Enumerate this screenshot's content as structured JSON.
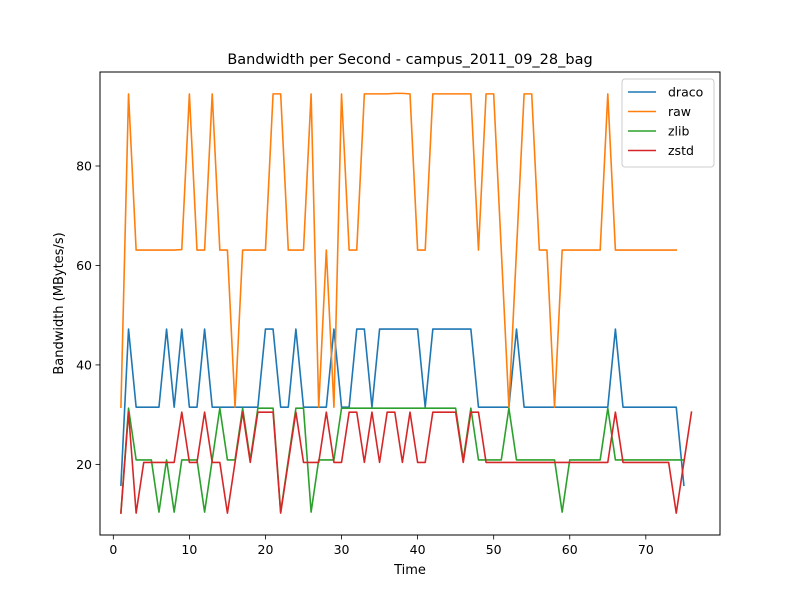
{
  "chart_data": {
    "type": "line",
    "title": "Bandwidth per Second - campus_2011_09_28_bag",
    "xlabel": "Time",
    "ylabel": "Bandwidth (MBytes/s)",
    "xlim": [
      -1.75,
      79.75
    ],
    "ylim": [
      5.8,
      98.9
    ],
    "xticks": [
      0,
      10,
      20,
      30,
      40,
      50,
      60,
      70
    ],
    "yticks": [
      20,
      40,
      60,
      80
    ],
    "legend_position": "top-right",
    "series": [
      {
        "name": "draco",
        "color": "#1f77b4",
        "x": [
          1,
          2,
          3,
          4,
          5,
          6,
          7,
          8,
          9,
          10,
          11,
          12,
          13,
          14,
          15,
          16,
          17,
          18,
          19,
          20,
          21,
          22,
          23,
          24,
          25,
          26,
          27,
          28,
          29,
          30,
          31,
          32,
          33,
          34,
          35,
          36,
          37,
          38,
          39,
          40,
          41,
          42,
          43,
          44,
          45,
          46,
          47,
          48,
          49,
          50,
          51,
          52,
          53,
          54,
          55,
          56,
          57,
          58,
          59,
          60,
          61,
          62,
          63,
          64,
          65,
          66,
          67,
          68,
          69,
          70,
          71,
          72,
          73,
          74,
          75
        ],
        "y": [
          15.8,
          47.2,
          31.5,
          31.5,
          31.5,
          31.5,
          47.2,
          31.5,
          47.2,
          31.5,
          31.5,
          47.2,
          31.5,
          31.5,
          31.5,
          31.5,
          31.5,
          31.5,
          31.5,
          47.2,
          47.2,
          31.5,
          31.5,
          47.2,
          31.5,
          31.5,
          31.5,
          31.5,
          47.2,
          31.5,
          31.5,
          47.2,
          47.2,
          31.5,
          47.2,
          47.2,
          47.2,
          47.2,
          47.2,
          47.2,
          31.5,
          47.2,
          47.2,
          47.2,
          47.2,
          47.2,
          47.2,
          31.5,
          31.5,
          31.5,
          31.5,
          31.5,
          47.2,
          31.5,
          31.5,
          31.5,
          31.5,
          31.5,
          31.5,
          31.5,
          31.5,
          31.5,
          31.5,
          31.5,
          31.5,
          47.2,
          31.5,
          31.5,
          31.5,
          31.5,
          31.5,
          31.5,
          31.5,
          31.5,
          15.8
        ]
      },
      {
        "name": "raw",
        "color": "#ff7f0e",
        "x": [
          1,
          2,
          3,
          4,
          5,
          6,
          7,
          8,
          9,
          10,
          11,
          12,
          13,
          14,
          15,
          16,
          17,
          18,
          19,
          20,
          21,
          22,
          23,
          24,
          25,
          26,
          27,
          28,
          29,
          30,
          31,
          32,
          33,
          34,
          35,
          36,
          37,
          38,
          39,
          40,
          41,
          42,
          43,
          44,
          45,
          46,
          47,
          48,
          49,
          50,
          51,
          52,
          53,
          54,
          55,
          56,
          57,
          58,
          59,
          60,
          61,
          62,
          63,
          64,
          65,
          66,
          67,
          68,
          69,
          70,
          71,
          72,
          73,
          74
        ],
        "y": [
          31.5,
          94.5,
          63.1,
          63.1,
          63.1,
          63.1,
          63.1,
          63.1,
          63.2,
          94.5,
          63.1,
          63.1,
          94.5,
          63.1,
          63.1,
          31.5,
          63.1,
          63.1,
          63.1,
          63.1,
          94.5,
          94.5,
          63.1,
          63.1,
          63.1,
          94.5,
          31.5,
          63.1,
          31.5,
          94.5,
          63.1,
          63.1,
          94.5,
          94.5,
          94.5,
          94.5,
          94.6,
          94.6,
          94.5,
          63.1,
          63.1,
          94.5,
          94.5,
          94.5,
          94.5,
          94.5,
          94.5,
          63.1,
          94.5,
          94.5,
          63.1,
          31.5,
          63.1,
          94.5,
          94.5,
          63.1,
          63.1,
          31.5,
          63.1,
          63.1,
          63.1,
          63.1,
          63.1,
          63.1,
          94.5,
          63.1,
          63.1,
          63.1,
          63.1,
          63.1,
          63.1,
          63.1,
          63.1,
          63.1
        ]
      },
      {
        "name": "zlib",
        "color": "#2ca02c",
        "x": [
          1,
          2,
          3,
          4,
          5,
          6,
          7,
          8,
          9,
          10,
          11,
          12,
          13,
          14,
          15,
          16,
          17,
          18,
          19,
          20,
          21,
          22,
          23,
          24,
          25,
          26,
          27,
          28,
          29,
          30,
          31,
          32,
          33,
          34,
          35,
          36,
          37,
          38,
          39,
          40,
          41,
          42,
          43,
          44,
          45,
          46,
          47,
          48,
          49,
          50,
          51,
          52,
          53,
          54,
          55,
          56,
          57,
          58,
          59,
          60,
          61,
          62,
          63,
          64,
          65,
          66,
          67,
          68,
          69,
          70,
          71,
          72,
          73,
          74,
          75
        ],
        "y": [
          10.4,
          31.3,
          20.9,
          20.9,
          20.9,
          10.4,
          20.9,
          10.4,
          20.9,
          20.9,
          20.9,
          10.4,
          20.9,
          31.3,
          20.9,
          20.9,
          31.3,
          20.9,
          31.3,
          31.3,
          31.3,
          10.4,
          20.9,
          31.3,
          31.3,
          10.4,
          20.9,
          20.9,
          20.9,
          31.3,
          31.3,
          31.3,
          31.3,
          31.3,
          31.3,
          31.3,
          31.3,
          31.3,
          31.3,
          31.3,
          31.3,
          31.3,
          31.3,
          31.3,
          31.3,
          20.9,
          31.3,
          20.9,
          20.9,
          20.9,
          20.9,
          31.3,
          20.9,
          20.9,
          20.9,
          20.9,
          20.9,
          20.9,
          10.4,
          20.9,
          20.9,
          20.9,
          20.9,
          20.9,
          31.3,
          20.9,
          20.9,
          20.9,
          20.9,
          20.9,
          20.9,
          20.9,
          20.9,
          20.9,
          20.9
        ]
      },
      {
        "name": "zstd",
        "color": "#d62728",
        "x": [
          1,
          2,
          3,
          4,
          5,
          6,
          7,
          8,
          9,
          10,
          11,
          12,
          13,
          14,
          15,
          16,
          17,
          18,
          19,
          20,
          21,
          22,
          23,
          24,
          25,
          26,
          27,
          28,
          29,
          30,
          31,
          32,
          33,
          34,
          35,
          36,
          37,
          38,
          39,
          40,
          41,
          42,
          43,
          44,
          45,
          46,
          47,
          48,
          49,
          50,
          51,
          52,
          53,
          54,
          55,
          56,
          57,
          58,
          59,
          60,
          61,
          62,
          63,
          64,
          65,
          66,
          67,
          68,
          69,
          70,
          71,
          72,
          73,
          74,
          75,
          76
        ],
        "y": [
          10.2,
          30.5,
          10.2,
          20.4,
          20.4,
          20.4,
          20.4,
          20.4,
          30.5,
          20.4,
          20.4,
          30.5,
          20.4,
          20.4,
          10.2,
          20.4,
          30.5,
          20.4,
          30.5,
          30.5,
          30.5,
          10.2,
          20.4,
          30.5,
          20.4,
          20.4,
          20.4,
          30.5,
          20.4,
          20.4,
          30.5,
          30.5,
          20.4,
          30.5,
          20.4,
          30.5,
          30.5,
          20.4,
          30.5,
          20.4,
          20.4,
          30.5,
          30.5,
          30.5,
          30.5,
          20.4,
          30.5,
          30.5,
          20.4,
          20.4,
          20.4,
          20.4,
          20.4,
          20.4,
          20.4,
          20.4,
          20.4,
          20.4,
          20.4,
          20.4,
          20.4,
          20.4,
          20.4,
          20.4,
          20.4,
          30.5,
          20.4,
          20.4,
          20.4,
          20.4,
          20.4,
          20.4,
          20.4,
          10.2,
          20.4,
          30.5
        ]
      }
    ]
  }
}
